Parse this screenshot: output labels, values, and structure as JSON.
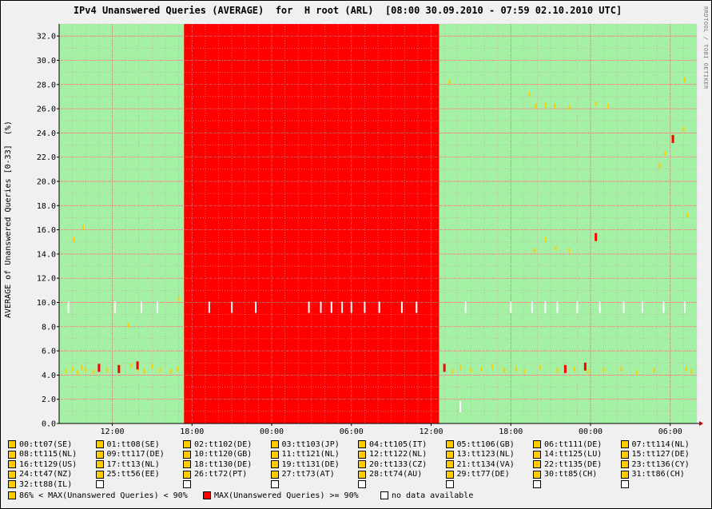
{
  "title": "IPv4 Unanswered Queries (AVERAGE)  for  H root (ARL)  [08:00 30.09.2010 - 07:59 02.10.2010 UTC]",
  "credit": "RRDTOOL / TOBI OETIKER",
  "colors": {
    "background": "#f0f0f0",
    "plot_ok": "#a4f0a4",
    "grid_major": "#e06060",
    "grid_minor": "#c8a0a0",
    "high": "#ffcc00",
    "max": "#ff0000",
    "nodata": "#ffffff"
  },
  "chart_data": {
    "type": "heatmap",
    "title": "IPv4 Unanswered Queries (AVERAGE)  for  H root (ARL)  [08:00 30.09.2010 - 07:59 02.10.2010 UTC]",
    "ylabel": "AVERAGE of Unanswered Queries [0-33]  (%)",
    "xlabel": "",
    "ylim": [
      0,
      33
    ],
    "yticks": [
      "0.0",
      "2.0",
      "4.0",
      "6.0",
      "8.0",
      "10.0",
      "12.0",
      "14.0",
      "16.0",
      "18.0",
      "20.0",
      "22.0",
      "24.0",
      "26.0",
      "28.0",
      "30.0",
      "32.0"
    ],
    "x_range_hours": [
      8,
      56
    ],
    "xticks": [
      {
        "hour": 12,
        "label": "12:00"
      },
      {
        "hour": 18,
        "label": "18:00"
      },
      {
        "hour": 24,
        "label": "00:00"
      },
      {
        "hour": 30,
        "label": "06:00"
      },
      {
        "hour": 36,
        "label": "12:00"
      },
      {
        "hour": 42,
        "label": "18:00"
      },
      {
        "hour": 48,
        "label": "00:00"
      },
      {
        "hour": 54,
        "label": "06:00"
      }
    ],
    "outage": {
      "start_hour": 17.4,
      "end_hour": 36.6,
      "status": "MAX(Unanswered Queries) >= 90%"
    },
    "high_points": [
      {
        "hour": 8.5,
        "y": 4.3
      },
      {
        "hour": 9.0,
        "y": 4.5
      },
      {
        "hour": 9.4,
        "y": 4.2
      },
      {
        "hour": 9.7,
        "y": 4.6
      },
      {
        "hour": 10.0,
        "y": 4.4
      },
      {
        "hour": 10.6,
        "y": 4.3
      },
      {
        "hour": 11.0,
        "y": 4.5
      },
      {
        "hour": 11.6,
        "y": 4.4
      },
      {
        "hour": 12.5,
        "y": 4.6
      },
      {
        "hour": 13.4,
        "y": 4.8
      },
      {
        "hour": 13.9,
        "y": 4.5
      },
      {
        "hour": 14.4,
        "y": 4.3
      },
      {
        "hour": 15.0,
        "y": 4.7
      },
      {
        "hour": 15.6,
        "y": 4.4
      },
      {
        "hour": 16.4,
        "y": 4.3
      },
      {
        "hour": 16.9,
        "y": 4.5
      },
      {
        "hour": 9.1,
        "y": 15.2
      },
      {
        "hour": 9.8,
        "y": 16.2
      },
      {
        "hour": 13.2,
        "y": 8.1
      },
      {
        "hour": 17.0,
        "y": 10.3
      },
      {
        "hour": 37.4,
        "y": 28.2
      },
      {
        "hour": 37.0,
        "y": 4.5
      },
      {
        "hour": 37.6,
        "y": 4.3
      },
      {
        "hour": 38.2,
        "y": 4.6
      },
      {
        "hour": 39.0,
        "y": 4.4
      },
      {
        "hour": 39.8,
        "y": 4.5
      },
      {
        "hour": 40.6,
        "y": 4.7
      },
      {
        "hour": 41.5,
        "y": 4.4
      },
      {
        "hour": 42.4,
        "y": 4.5
      },
      {
        "hour": 43.0,
        "y": 4.3
      },
      {
        "hour": 44.2,
        "y": 4.6
      },
      {
        "hour": 45.5,
        "y": 4.4
      },
      {
        "hour": 46.8,
        "y": 4.5
      },
      {
        "hour": 47.8,
        "y": 4.3
      },
      {
        "hour": 49.0,
        "y": 4.4
      },
      {
        "hour": 50.3,
        "y": 4.5
      },
      {
        "hour": 51.5,
        "y": 4.2
      },
      {
        "hour": 52.8,
        "y": 4.4
      },
      {
        "hour": 55.2,
        "y": 4.5
      },
      {
        "hour": 55.6,
        "y": 4.3
      },
      {
        "hour": 43.4,
        "y": 27.2
      },
      {
        "hour": 43.9,
        "y": 26.2
      },
      {
        "hour": 44.6,
        "y": 26.3
      },
      {
        "hour": 45.3,
        "y": 26.2
      },
      {
        "hour": 46.4,
        "y": 26.1
      },
      {
        "hour": 48.4,
        "y": 26.4
      },
      {
        "hour": 49.3,
        "y": 26.2
      },
      {
        "hour": 55.1,
        "y": 28.4
      },
      {
        "hour": 43.8,
        "y": 14.3
      },
      {
        "hour": 44.6,
        "y": 15.2
      },
      {
        "hour": 45.4,
        "y": 14.5
      },
      {
        "hour": 46.4,
        "y": 14.3
      },
      {
        "hour": 53.2,
        "y": 21.3
      },
      {
        "hour": 55.3,
        "y": 17.2
      },
      {
        "hour": 55.0,
        "y": 24.3
      },
      {
        "hour": 53.6,
        "y": 22.3
      }
    ],
    "max_points": [
      {
        "hour": 11.0,
        "y": 4.6
      },
      {
        "hour": 12.5,
        "y": 4.5
      },
      {
        "hour": 13.9,
        "y": 4.8
      },
      {
        "hour": 37.0,
        "y": 4.6
      },
      {
        "hour": 46.1,
        "y": 4.5
      },
      {
        "hour": 47.6,
        "y": 4.7
      },
      {
        "hour": 48.4,
        "y": 15.4
      },
      {
        "hour": 54.2,
        "y": 23.5
      }
    ],
    "nodata_points": [
      {
        "hour": 8.7,
        "y": 9.6
      },
      {
        "hour": 12.2,
        "y": 9.6
      },
      {
        "hour": 14.2,
        "y": 9.6
      },
      {
        "hour": 15.4,
        "y": 9.6
      },
      {
        "hour": 19.3,
        "y": 9.6
      },
      {
        "hour": 21.0,
        "y": 9.6
      },
      {
        "hour": 22.8,
        "y": 9.6
      },
      {
        "hour": 26.8,
        "y": 9.6
      },
      {
        "hour": 27.7,
        "y": 9.6
      },
      {
        "hour": 28.5,
        "y": 9.6
      },
      {
        "hour": 29.3,
        "y": 9.6
      },
      {
        "hour": 30.0,
        "y": 9.6
      },
      {
        "hour": 31.0,
        "y": 9.6
      },
      {
        "hour": 32.1,
        "y": 9.6
      },
      {
        "hour": 33.8,
        "y": 9.6
      },
      {
        "hour": 34.9,
        "y": 9.6
      },
      {
        "hour": 38.2,
        "y": 1.4
      },
      {
        "hour": 38.6,
        "y": 9.6
      },
      {
        "hour": 42.0,
        "y": 9.6
      },
      {
        "hour": 43.6,
        "y": 9.6
      },
      {
        "hour": 44.6,
        "y": 9.6
      },
      {
        "hour": 45.5,
        "y": 9.6
      },
      {
        "hour": 47.0,
        "y": 9.6
      },
      {
        "hour": 48.7,
        "y": 9.6
      },
      {
        "hour": 50.5,
        "y": 9.6
      },
      {
        "hour": 51.9,
        "y": 9.6
      },
      {
        "hour": 53.5,
        "y": 9.6
      },
      {
        "hour": 55.1,
        "y": 9.6
      }
    ]
  },
  "legend": {
    "items": [
      "00:tt07(SE)",
      "01:tt08(SE)",
      "02:tt102(DE)",
      "03:tt103(JP)",
      "04:tt105(IT)",
      "05:tt106(GB)",
      "06:tt111(DE)",
      "07:tt114(NL)",
      "08:tt115(NL)",
      "09:tt117(DE)",
      "10:tt120(GB)",
      "11:tt121(NL)",
      "12:tt122(NL)",
      "13:tt123(NL)",
      "14:tt125(LU)",
      "15:tt127(DE)",
      "16:tt129(US)",
      "17:tt13(NL)",
      "18:tt130(DE)",
      "19:tt131(DE)",
      "20:tt133(CZ)",
      "21:tt134(VA)",
      "22:tt135(DE)",
      "23:tt136(CY)",
      "24:tt47(NZ)",
      "25:tt56(EE)",
      "26:tt72(PT)",
      "27:tt73(AT)",
      "28:tt74(AU)",
      "29:tt77(DE)",
      "30:tt85(CH)",
      "31:tt86(CH)",
      "32:tt88(IL)",
      "",
      "",
      "",
      "",
      "",
      "",
      ""
    ],
    "status": [
      {
        "label": "86% < MAX(Unanswered Queries) < 90%",
        "swatch": "yellow"
      },
      {
        "label": "MAX(Unanswered Queries) >= 90%",
        "swatch": "red"
      },
      {
        "label": "no data available",
        "swatch": "white"
      }
    ]
  }
}
